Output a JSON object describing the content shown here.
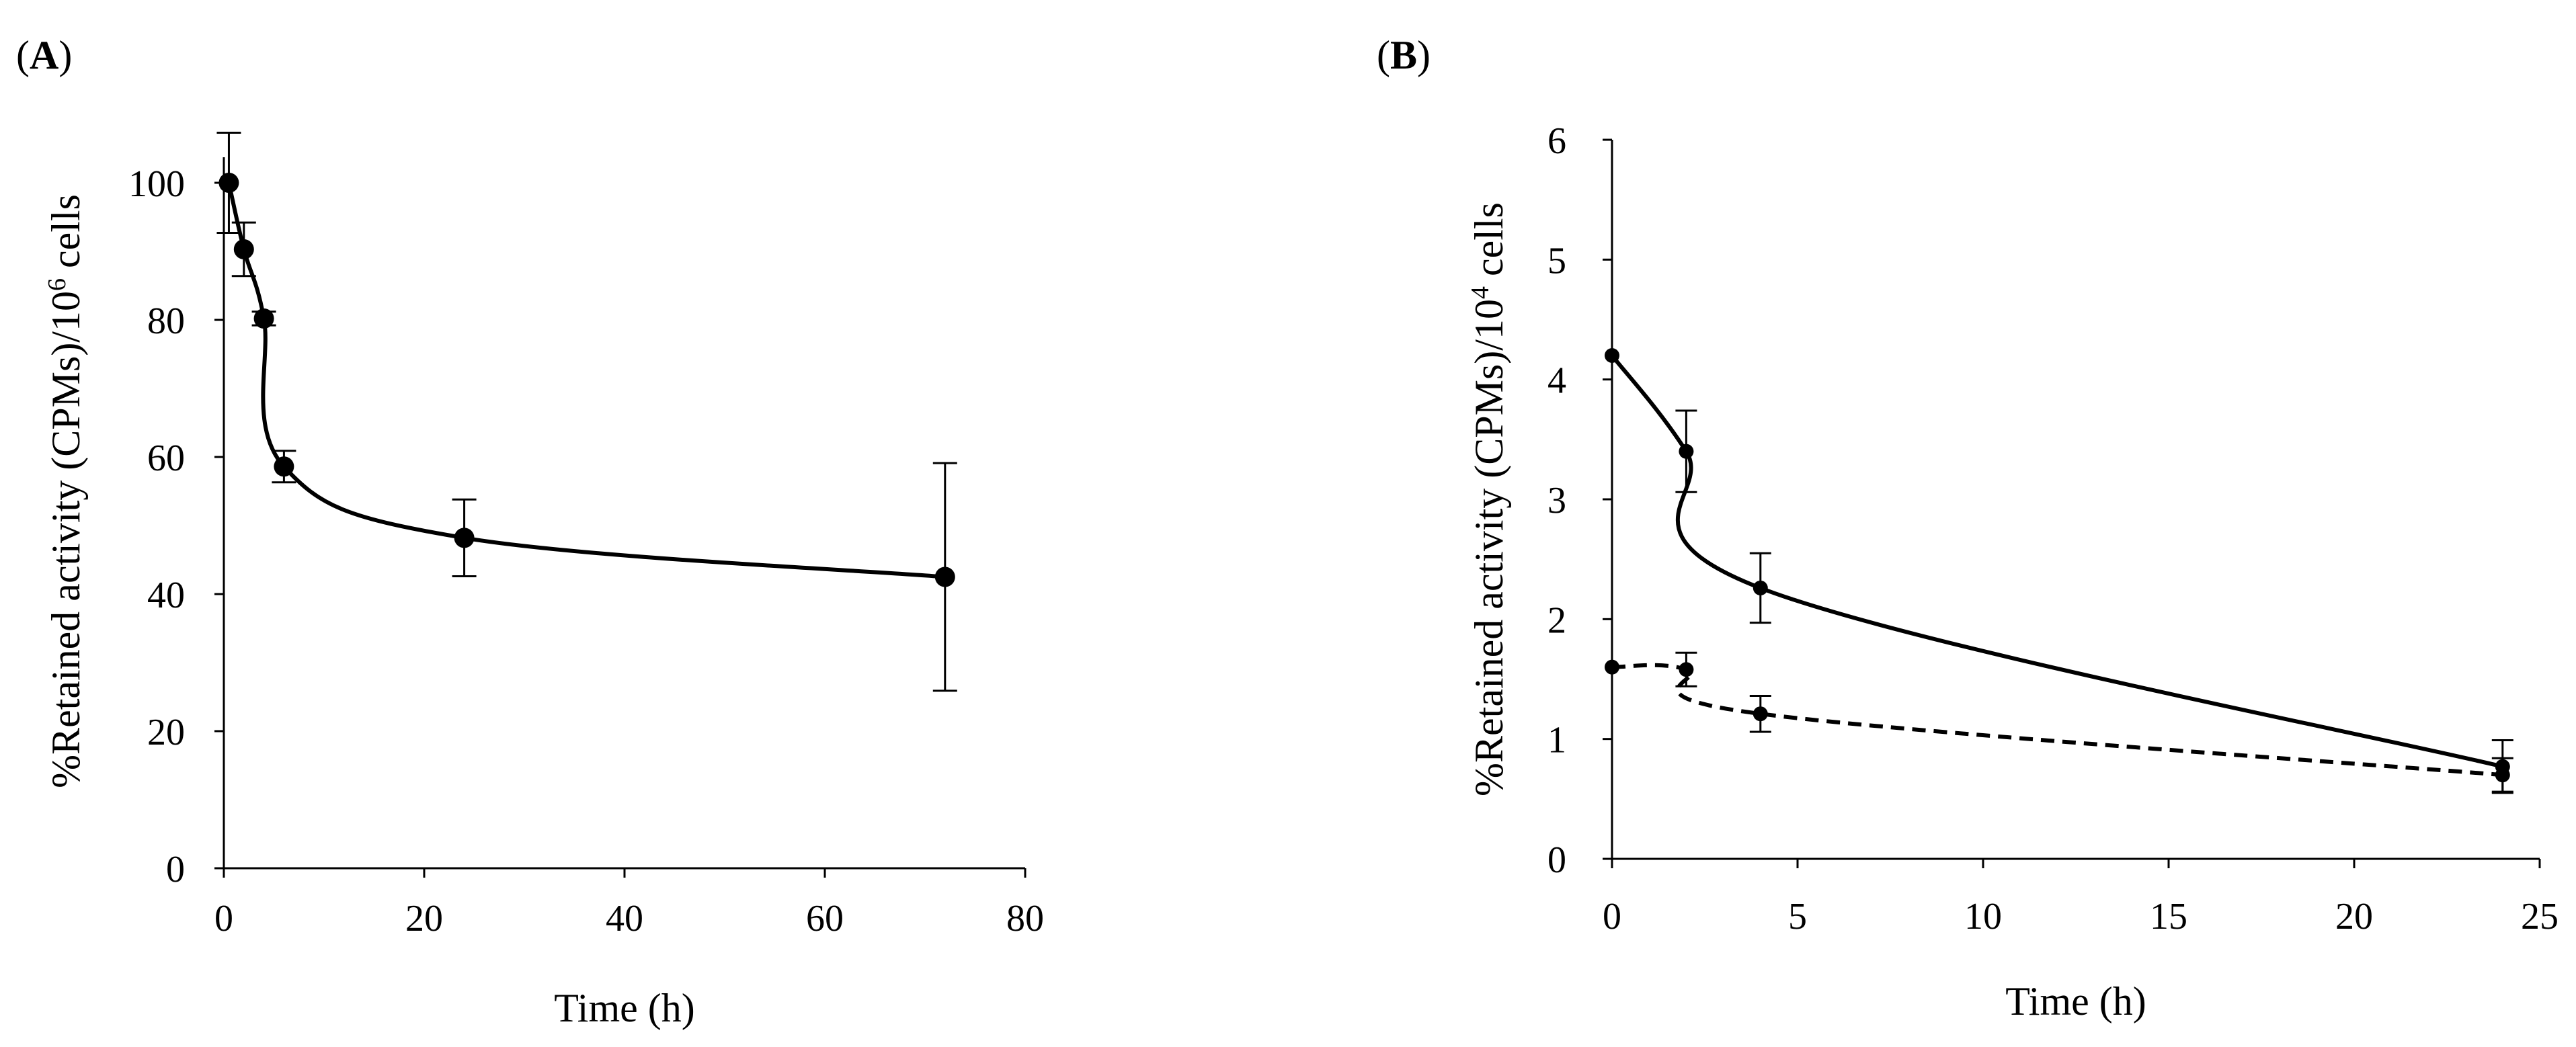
{
  "figure": {
    "panels": [
      {
        "open": "(",
        "letter": "A",
        "close": ")"
      },
      {
        "open": "(",
        "letter": "B",
        "close": ")"
      }
    ]
  },
  "chart_data": [
    {
      "panel": "A",
      "type": "line",
      "title": "",
      "xlabel": "Time (h)",
      "ylabel_parts": [
        "%Retained activity (CPMs)/10",
        "6",
        " cells"
      ],
      "xlim": [
        0,
        80
      ],
      "ylim": [
        0,
        110
      ],
      "xticks": [
        0,
        20,
        40,
        60,
        80
      ],
      "yticks": [
        0,
        20,
        40,
        60,
        80,
        100
      ],
      "grid": false,
      "legend": "none",
      "series": [
        {
          "name": "retained activity",
          "style": "solid",
          "x": [
            0.5,
            2,
            4,
            6,
            24,
            72
          ],
          "y": [
            100,
            90.3,
            80.2,
            58.6,
            48.2,
            42.5
          ],
          "err": [
            7.3,
            3.9,
            1,
            2.3,
            5.6,
            16.6
          ]
        }
      ]
    },
    {
      "panel": "B",
      "type": "line",
      "title": "",
      "xlabel": "Time (h)",
      "ylabel_parts": [
        "%Retained activity (CPMs)/10",
        "4",
        " cells"
      ],
      "xlim": [
        0,
        25
      ],
      "ylim": [
        0,
        6
      ],
      "xticks": [
        0,
        5,
        10,
        15,
        20,
        25
      ],
      "yticks": [
        0,
        1,
        2,
        3,
        4,
        5,
        6
      ],
      "grid": false,
      "legend": "none",
      "series": [
        {
          "name": "solid series",
          "style": "solid",
          "x": [
            0,
            2,
            4,
            24
          ],
          "y": [
            4.2,
            3.4,
            2.26,
            0.77
          ],
          "err": [
            0,
            0.34,
            0.29,
            0.22
          ]
        },
        {
          "name": "dashed series",
          "style": "dashed",
          "x": [
            0,
            2,
            4,
            24
          ],
          "y": [
            1.6,
            1.58,
            1.21,
            0.7
          ],
          "err": [
            0,
            0.14,
            0.15,
            0.14
          ]
        }
      ]
    }
  ]
}
